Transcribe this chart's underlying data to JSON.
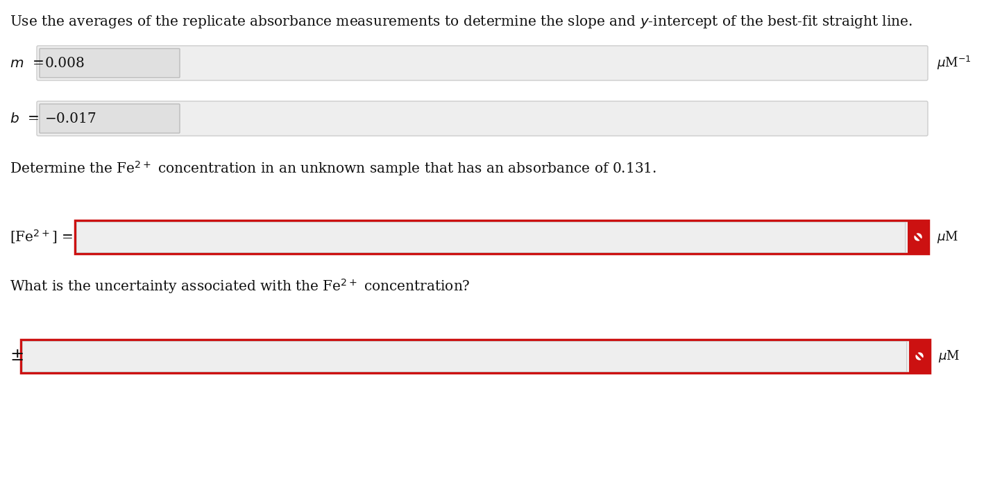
{
  "background_color": "#ffffff",
  "title_text": "Use the averages of the replicate absorbance measurements to determine the slope and $y$-intercept of the best-fit straight line.",
  "m_label": "$m$  =",
  "m_value": "0.008",
  "m_unit": "$\\mu$M$^{-1}$",
  "b_label": "$b$  =",
  "b_value": "−0.017",
  "det_text": "Determine the Fe$^{2+}$ concentration in an unknown sample that has an absorbance of 0.131.",
  "fe_label": "[Fe$^{2+}$] =",
  "fe_unit": "$\\mu$M",
  "unc_label": "$\\pm$",
  "unc_unit": "$\\mu$M",
  "what_text": "What is the uncertainty associated with the Fe$^{2+}$ concentration?",
  "outer_box_fill": "#eeeeee",
  "outer_box_edge": "#cccccc",
  "inner_box_fill": "#e0e0e0",
  "inner_box_edge": "#bbbbbb",
  "red_box_edge": "#cc1111",
  "red_fill": "#cc1111",
  "red_icon_color": "#cc1111",
  "text_color": "#111111",
  "font_size_main": 14.5,
  "font_size_label": 14.5,
  "font_size_unit": 13
}
